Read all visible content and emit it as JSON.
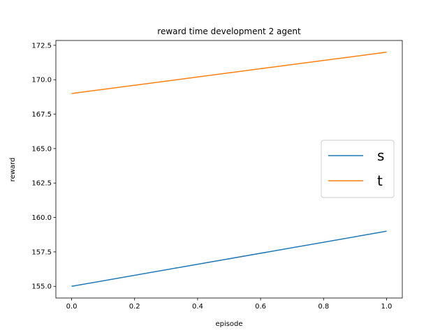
{
  "chart_data": {
    "type": "line",
    "title": "reward time development 2 agent",
    "xlabel": "episode",
    "ylabel": "reward",
    "xlim": [
      -0.05,
      1.05
    ],
    "ylim": [
      154.15,
      172.85
    ],
    "xticks": [
      "0.0",
      "0.2",
      "0.4",
      "0.6",
      "0.8",
      "1.0"
    ],
    "yticks": [
      "155.0",
      "157.5",
      "160.0",
      "162.5",
      "165.0",
      "167.5",
      "170.0",
      "172.5"
    ],
    "grid": false,
    "legend_position": "center-right",
    "series": [
      {
        "name": "s",
        "color": "#1f77b4",
        "x": [
          0,
          1
        ],
        "y": [
          155,
          159
        ]
      },
      {
        "name": "t",
        "color": "#ff7f0e",
        "x": [
          0,
          1
        ],
        "y": [
          169,
          172
        ]
      }
    ]
  }
}
